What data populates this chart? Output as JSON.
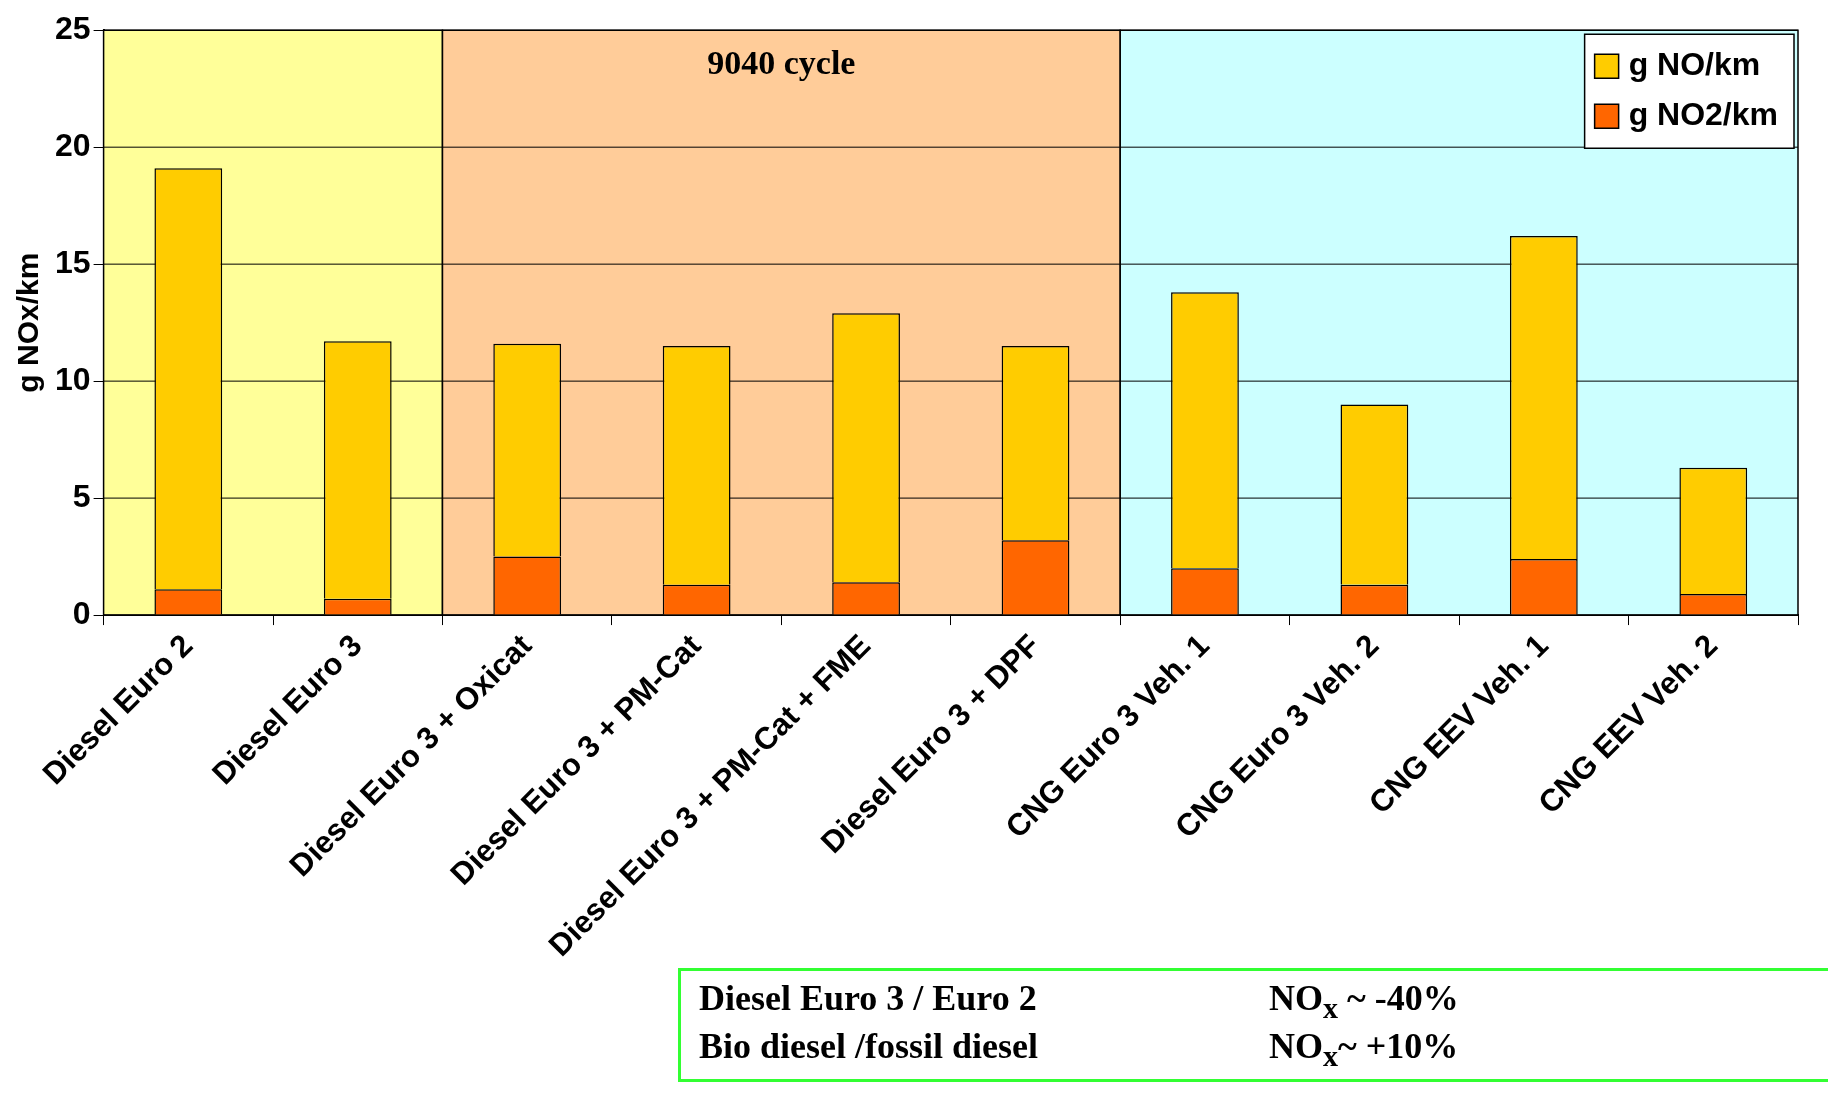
{
  "chart_data": {
    "type": "bar",
    "stacked": true,
    "ylabel": "g NOx/km",
    "categories": [
      "Diesel Euro 2",
      "Diesel Euro 3",
      "Diesel Euro 3 + Oxicat",
      "Diesel Euro 3 + PM-Cat",
      "Diesel Euro 3 + PM-Cat + FME",
      "Diesel Euro 3 + DPF",
      "CNG Euro 3 Veh. 1",
      "CNG Euro 3 Veh. 2",
      "CNG EEV Veh. 1",
      "CNG EEV Veh. 2"
    ],
    "series": [
      {
        "name": "g NO2/km",
        "color": "#ff6600",
        "values": [
          1.1,
          0.7,
          2.5,
          1.3,
          1.4,
          3.2,
          2.0,
          1.3,
          2.4,
          0.9
        ]
      },
      {
        "name": "g NO/km",
        "color": "#ffcc00",
        "values": [
          18.0,
          11.0,
          9.1,
          10.2,
          11.5,
          8.3,
          11.8,
          7.7,
          13.8,
          5.4
        ]
      }
    ],
    "ylim": [
      0,
      25
    ],
    "yticks": [
      0,
      5,
      10,
      15,
      20,
      25
    ],
    "grid": "y",
    "legend": "top right",
    "bands": [
      {
        "axis": "x",
        "from": "Diesel Euro 2",
        "to": "Diesel Euro 3",
        "color": "#ffff99"
      },
      {
        "axis": "x",
        "from": "Diesel Euro 3 + Oxicat",
        "to": "Diesel Euro 3 + DPF",
        "color": "#ffcc99",
        "label": "9040 cycle"
      },
      {
        "axis": "x",
        "from": "CNG Euro 3 Veh. 1",
        "to": "CNG EEV Veh. 2",
        "color": "#ccffff"
      }
    ],
    "annotations": [
      "Diesel Euro 3 / Euro 2",
      "NO$_{x}$ ~ -40%",
      "Bio diesel /fossil diesel",
      "NO$_{x}$~ +10%"
    ]
  }
}
